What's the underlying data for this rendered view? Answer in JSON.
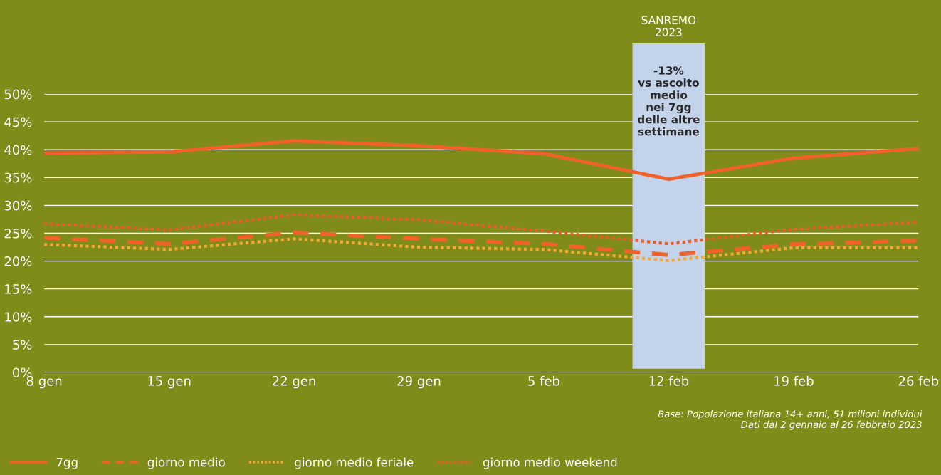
{
  "chart_data": {
    "type": "line",
    "x": [
      "2023-01-08",
      "2023-01-15",
      "2023-01-22",
      "2023-01-29",
      "2023-02-05",
      "2023-02-12",
      "2023-02-19",
      "2023-02-26"
    ],
    "series": [
      {
        "name": "7gg",
        "color": "#f0622a",
        "line_style": "solid",
        "values": [
          39.4,
          39.6,
          41.6,
          40.7,
          39.3,
          34.7,
          38.5,
          40.2
        ]
      },
      {
        "name": "giorno medio",
        "color": "#f0622a",
        "line_style": "dashed",
        "values": [
          24.2,
          23.1,
          25.1,
          24.0,
          23.1,
          21.1,
          23.0,
          23.7
        ]
      },
      {
        "name": "giorno medio feriale",
        "color": "#f5a833",
        "line_style": "dotted",
        "values": [
          23.0,
          22.1,
          24.0,
          22.5,
          22.1,
          20.1,
          22.4,
          22.4
        ]
      },
      {
        "name": "giorno medio weekend",
        "color": "#ee5a2a",
        "line_style": "dotted",
        "values": [
          26.7,
          25.6,
          28.3,
          27.4,
          25.4,
          23.1,
          25.7,
          27.0
        ]
      }
    ],
    "xlim": [
      "2023-01-08",
      "2023-02-26"
    ],
    "xticks": [
      {
        "value": "2023-01-08",
        "label": "8 gen"
      },
      {
        "value": "2023-01-15",
        "label": "15 gen"
      },
      {
        "value": "2023-01-22",
        "label": "22 gen"
      },
      {
        "value": "2023-01-29",
        "label": "29 gen"
      },
      {
        "value": "2023-02-05",
        "label": "5 feb"
      },
      {
        "value": "2023-02-12",
        "label": "12 feb"
      },
      {
        "value": "2023-02-19",
        "label": "19 feb"
      },
      {
        "value": "2023-02-26",
        "label": "26 feb"
      }
    ],
    "ylim": [
      0,
      50
    ],
    "yticks": [
      {
        "value": 0,
        "label": "0%"
      },
      {
        "value": 5,
        "label": "5%"
      },
      {
        "value": 10,
        "label": "10%"
      },
      {
        "value": 15,
        "label": "15%"
      },
      {
        "value": 20,
        "label": "20%"
      },
      {
        "value": 25,
        "label": "25%"
      },
      {
        "value": 30,
        "label": "30%"
      },
      {
        "value": 35,
        "label": "35%"
      },
      {
        "value": 40,
        "label": "40%"
      },
      {
        "value": 45,
        "label": "45%"
      },
      {
        "value": 50,
        "label": "50%"
      }
    ],
    "bands": [
      {
        "axis": "x",
        "from": "2023-02-10",
        "to": "2023-02-14",
        "label": "SANREMO\n2023",
        "color": "#c3d3ea"
      }
    ],
    "annotations": [
      "-13%\nvs ascolto\nmedio\nnei 7gg\ndelle altre\nsettimane",
      "Base: Popolazione italiana 14+ anni, 51 milioni individui\nDati dal 2 gennaio al 26 febbraio 2023"
    ],
    "grid": "y",
    "legend": "bottom left",
    "marker": "none"
  }
}
